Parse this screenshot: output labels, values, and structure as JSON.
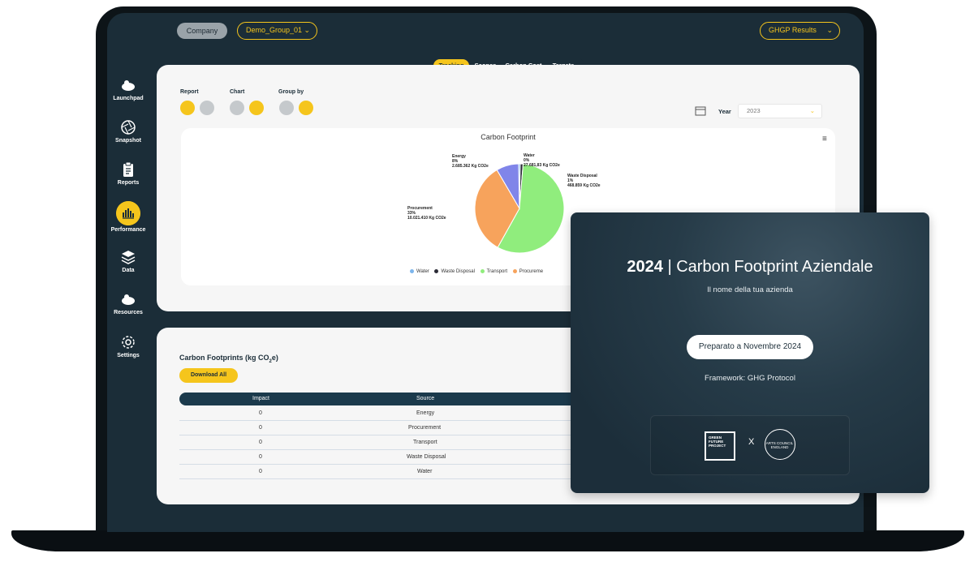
{
  "topbar": {
    "company_label": "Company",
    "group_select": "Demo_Group_01",
    "results_select": "GHGP Results"
  },
  "sidebar": {
    "items": [
      {
        "label": "Launchpad",
        "icon": "rocket-icon"
      },
      {
        "label": "Snapshot",
        "icon": "aperture-icon"
      },
      {
        "label": "Reports",
        "icon": "clipboard-icon"
      },
      {
        "label": "Performance",
        "icon": "bar-chart-icon",
        "active": true
      },
      {
        "label": "Data",
        "icon": "layers-icon"
      },
      {
        "label": "Resources",
        "icon": "rocket-icon"
      },
      {
        "label": "Settings",
        "icon": "gear-icon"
      }
    ]
  },
  "tabs": [
    "Tracking",
    "Scopes",
    "Carbon Cost",
    "Targets"
  ],
  "controls": {
    "report_label": "Report",
    "chart_label": "Chart",
    "group_by_label": "Group by",
    "year_label": "Year",
    "year_value": "2023"
  },
  "chart_data": {
    "type": "pie",
    "title": "Carbon Footprint",
    "slices": [
      {
        "name": "Water",
        "percent": 0,
        "value_label": "Water\n0%\n27.681,83 Kg CO2e",
        "color": "#7cb5ec"
      },
      {
        "name": "Waste Disposal",
        "percent": 1,
        "value_label": "Waste Disposal\n1%\n468.859 Kg CO2e",
        "color": "#2b2b36"
      },
      {
        "name": "Transport",
        "percent": 56,
        "value_label": "",
        "color": "#90ed7d"
      },
      {
        "name": "Procurement",
        "percent": 33,
        "value_label": "Procurement\n33%\n10.021.410 Kg CO2e",
        "color": "#f7a35c"
      },
      {
        "name": "Energy",
        "percent": 8,
        "value_label": "Energy\n8%\n2.685.362 Kg CO2e",
        "color": "#8085e9"
      }
    ],
    "legend": [
      "Water",
      "Waste Disposal",
      "Transport",
      "Procureme"
    ]
  },
  "table": {
    "title_prefix": "Carbon Footprints (kg CO",
    "title_sub": "2",
    "title_suffix": "e)",
    "download_label": "Download All",
    "headers": [
      "Impact",
      "Source"
    ],
    "rows": [
      {
        "impact": "0",
        "source": "Energy"
      },
      {
        "impact": "0",
        "source": "Procurement"
      },
      {
        "impact": "0",
        "source": "Transport"
      },
      {
        "impact": "0",
        "source": "Waste Disposal"
      },
      {
        "impact": "0",
        "source": "Water"
      }
    ]
  },
  "overlay": {
    "year": "2024",
    "title": "| Carbon Footprint Aziendale",
    "subtitle": "Il nome della tua azienda",
    "prepared": "Preparato a Novembre 2024",
    "framework": "Framework: GHG Protocol",
    "logo_left": "GREEN FUTURE PROJECT",
    "separator": "X",
    "logo_right": "ARTS COUNCIL ENGLAND"
  },
  "colors": {
    "accent": "#f5c51c",
    "navy": "#1b2d38",
    "table_header": "#1b3a4c"
  }
}
